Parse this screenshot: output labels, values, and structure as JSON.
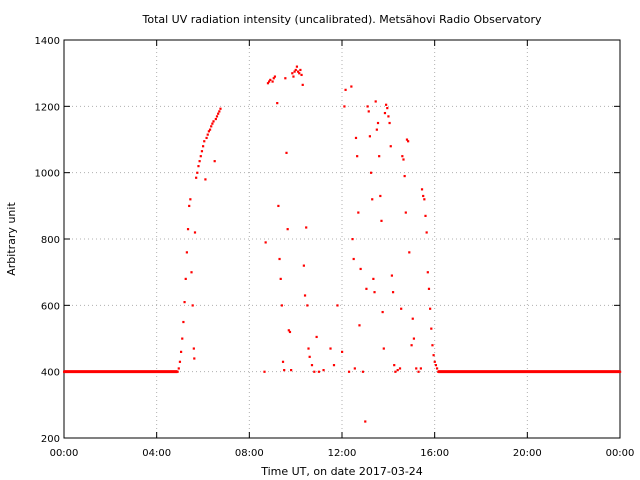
{
  "chart_data": {
    "type": "scatter",
    "title": "Total UV radiation intensity (uncalibrated). Metsähovi Radio Observatory",
    "xlabel": "Time UT, on date 2017-03-24",
    "ylabel": "Arbitrary unit",
    "x_unit": "hours UT",
    "xlim": [
      0,
      24
    ],
    "ylim": [
      200,
      1400
    ],
    "grid": true,
    "marker_color": "#ff0000",
    "x_ticks": [
      {
        "value": 0,
        "label": "00:00"
      },
      {
        "value": 4,
        "label": "04:00"
      },
      {
        "value": 8,
        "label": "08:00"
      },
      {
        "value": 12,
        "label": "12:00"
      },
      {
        "value": 16,
        "label": "16:00"
      },
      {
        "value": 20,
        "label": "20:00"
      },
      {
        "value": 24,
        "label": "00:00"
      }
    ],
    "y_ticks": [
      {
        "value": 200,
        "label": "200"
      },
      {
        "value": 400,
        "label": "400"
      },
      {
        "value": 600,
        "label": "600"
      },
      {
        "value": 800,
        "label": "800"
      },
      {
        "value": 1000,
        "label": "1000"
      },
      {
        "value": 1200,
        "label": "1200"
      },
      {
        "value": 1400,
        "label": "1400"
      }
    ],
    "series": [
      {
        "points": [
          [
            0.0,
            400
          ],
          [
            0.5,
            400
          ],
          [
            1.0,
            400
          ],
          [
            1.5,
            400
          ],
          [
            2.0,
            400
          ],
          [
            2.5,
            400
          ],
          [
            3.0,
            400
          ],
          [
            3.5,
            400
          ],
          [
            4.0,
            400
          ],
          [
            4.5,
            400
          ],
          [
            4.9,
            400
          ],
          [
            4.95,
            410
          ],
          [
            5.0,
            430
          ],
          [
            5.05,
            460
          ],
          [
            5.1,
            500
          ],
          [
            5.15,
            550
          ],
          [
            5.2,
            610
          ],
          [
            5.25,
            680
          ],
          [
            5.3,
            760
          ],
          [
            5.35,
            830
          ],
          [
            5.4,
            900
          ],
          [
            5.45,
            920
          ],
          [
            5.5,
            700
          ],
          [
            5.55,
            600
          ],
          [
            5.6,
            470
          ],
          [
            5.62,
            440
          ],
          [
            5.65,
            820
          ],
          [
            5.7,
            985
          ],
          [
            5.75,
            1000
          ],
          [
            5.8,
            1020
          ],
          [
            5.85,
            1035
          ],
          [
            5.9,
            1050
          ],
          [
            5.95,
            1065
          ],
          [
            6.0,
            1080
          ],
          [
            6.05,
            1095
          ],
          [
            6.1,
            980
          ],
          [
            6.15,
            1105
          ],
          [
            6.2,
            1115
          ],
          [
            6.25,
            1125
          ],
          [
            6.3,
            1130
          ],
          [
            6.35,
            1140
          ],
          [
            6.4,
            1148
          ],
          [
            6.45,
            1155
          ],
          [
            6.5,
            1035
          ],
          [
            6.55,
            1162
          ],
          [
            6.6,
            1170
          ],
          [
            6.65,
            1178
          ],
          [
            6.7,
            1185
          ],
          [
            6.75,
            1193
          ],
          [
            8.65,
            400
          ],
          [
            8.7,
            790
          ],
          [
            8.8,
            1270
          ],
          [
            8.85,
            1275
          ],
          [
            8.9,
            1280
          ],
          [
            9.0,
            1275
          ],
          [
            9.05,
            1285
          ],
          [
            9.1,
            1290
          ],
          [
            9.2,
            1210
          ],
          [
            9.25,
            900
          ],
          [
            9.3,
            740
          ],
          [
            9.35,
            680
          ],
          [
            9.4,
            600
          ],
          [
            9.45,
            430
          ],
          [
            9.5,
            405
          ],
          [
            9.55,
            1285
          ],
          [
            9.6,
            1060
          ],
          [
            9.65,
            830
          ],
          [
            9.7,
            525
          ],
          [
            9.75,
            520
          ],
          [
            9.8,
            405
          ],
          [
            9.85,
            1300
          ],
          [
            9.9,
            1290
          ],
          [
            9.95,
            1305
          ],
          [
            10.0,
            1310
          ],
          [
            10.05,
            1320
          ],
          [
            10.1,
            1305
          ],
          [
            10.15,
            1300
          ],
          [
            10.2,
            1310
          ],
          [
            10.25,
            1295
          ],
          [
            10.3,
            1265
          ],
          [
            10.35,
            720
          ],
          [
            10.4,
            630
          ],
          [
            10.45,
            835
          ],
          [
            10.5,
            600
          ],
          [
            10.55,
            470
          ],
          [
            10.6,
            445
          ],
          [
            10.7,
            420
          ],
          [
            10.8,
            400
          ],
          [
            10.9,
            505
          ],
          [
            11.0,
            400
          ],
          [
            11.2,
            405
          ],
          [
            11.5,
            470
          ],
          [
            11.65,
            420
          ],
          [
            11.8,
            600
          ],
          [
            12.0,
            460
          ],
          [
            12.1,
            1200
          ],
          [
            12.15,
            1250
          ],
          [
            12.3,
            400
          ],
          [
            12.4,
            1260
          ],
          [
            12.45,
            800
          ],
          [
            12.5,
            740
          ],
          [
            12.55,
            410
          ],
          [
            12.6,
            1105
          ],
          [
            12.65,
            1050
          ],
          [
            12.7,
            880
          ],
          [
            12.75,
            540
          ],
          [
            12.8,
            710
          ],
          [
            12.9,
            400
          ],
          [
            13.0,
            250
          ],
          [
            13.05,
            650
          ],
          [
            13.1,
            1200
          ],
          [
            13.15,
            1185
          ],
          [
            13.2,
            1110
          ],
          [
            13.25,
            1000
          ],
          [
            13.3,
            920
          ],
          [
            13.35,
            680
          ],
          [
            13.4,
            640
          ],
          [
            13.45,
            1215
          ],
          [
            13.5,
            1130
          ],
          [
            13.55,
            1150
          ],
          [
            13.6,
            1050
          ],
          [
            13.65,
            930
          ],
          [
            13.7,
            855
          ],
          [
            13.75,
            580
          ],
          [
            13.8,
            470
          ],
          [
            13.85,
            1180
          ],
          [
            13.9,
            1205
          ],
          [
            13.95,
            1195
          ],
          [
            14.0,
            1170
          ],
          [
            14.05,
            1150
          ],
          [
            14.1,
            1080
          ],
          [
            14.15,
            690
          ],
          [
            14.2,
            640
          ],
          [
            14.25,
            420
          ],
          [
            14.3,
            400
          ],
          [
            14.4,
            405
          ],
          [
            14.5,
            410
          ],
          [
            14.55,
            590
          ],
          [
            14.6,
            1050
          ],
          [
            14.65,
            1040
          ],
          [
            14.7,
            990
          ],
          [
            14.75,
            880
          ],
          [
            14.8,
            1100
          ],
          [
            14.85,
            1095
          ],
          [
            14.9,
            760
          ],
          [
            15.0,
            480
          ],
          [
            15.05,
            560
          ],
          [
            15.1,
            500
          ],
          [
            15.2,
            410
          ],
          [
            15.3,
            400
          ],
          [
            15.4,
            410
          ],
          [
            15.45,
            950
          ],
          [
            15.5,
            930
          ],
          [
            15.55,
            920
          ],
          [
            15.6,
            870
          ],
          [
            15.65,
            820
          ],
          [
            15.7,
            700
          ],
          [
            15.75,
            650
          ],
          [
            15.8,
            590
          ],
          [
            15.85,
            530
          ],
          [
            15.9,
            480
          ],
          [
            15.95,
            450
          ],
          [
            16.0,
            430
          ],
          [
            16.05,
            420
          ],
          [
            16.1,
            410
          ],
          [
            16.15,
            400
          ],
          [
            16.5,
            400
          ],
          [
            17.0,
            400
          ],
          [
            17.5,
            400
          ],
          [
            18.0,
            400
          ],
          [
            18.5,
            400
          ],
          [
            19.0,
            400
          ],
          [
            19.5,
            400
          ],
          [
            20.0,
            400
          ],
          [
            20.5,
            400
          ],
          [
            21.0,
            400
          ],
          [
            21.5,
            400
          ],
          [
            22.0,
            400
          ],
          [
            22.5,
            400
          ],
          [
            23.0,
            400
          ],
          [
            23.5,
            400
          ],
          [
            24.0,
            400
          ]
        ]
      }
    ]
  }
}
